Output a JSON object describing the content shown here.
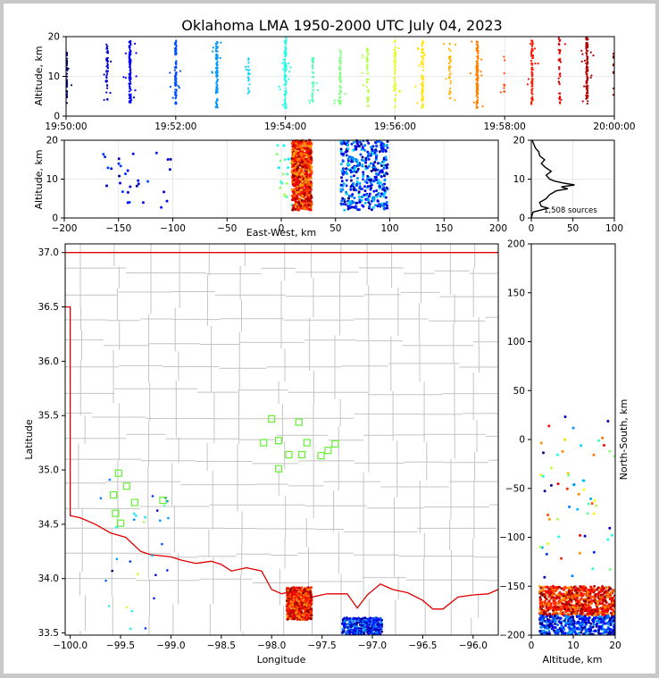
{
  "chart_data": [
    {
      "type": "scatter",
      "panel": "time-altitude",
      "title": "Oklahoma LMA 1950-2000 UTC July 04, 2023",
      "xlabel": "",
      "ylabel": "Altitude, km",
      "xlim": [
        "19:50:00",
        "20:00:00"
      ],
      "ylim": [
        0,
        20
      ],
      "x_ticks": [
        "19:50:00",
        "19:52:00",
        "19:54:00",
        "19:56:00",
        "19:58:00",
        "20:00:00"
      ],
      "y_ticks": [
        0,
        10,
        20
      ],
      "grid": true,
      "color_scale": "time (blue → cyan → green → yellow → orange → red)",
      "point_clusters": [
        {
          "time": "19:50:00",
          "alt_min": 3,
          "alt_max": 16,
          "n": 30
        },
        {
          "time": "19:50:45",
          "alt_min": 4,
          "alt_max": 19,
          "n": 50
        },
        {
          "time": "19:51:10",
          "alt_min": 3,
          "alt_max": 19,
          "n": 110
        },
        {
          "time": "19:52:00",
          "alt_min": 3,
          "alt_max": 19,
          "n": 90
        },
        {
          "time": "19:52:45",
          "alt_min": 2,
          "alt_max": 19,
          "n": 100
        },
        {
          "time": "19:53:20",
          "alt_min": 5,
          "alt_max": 15,
          "n": 20
        },
        {
          "time": "19:54:00",
          "alt_min": 2,
          "alt_max": 20,
          "n": 110
        },
        {
          "time": "19:54:30",
          "alt_min": 3,
          "alt_max": 15,
          "n": 40
        },
        {
          "time": "19:55:00",
          "alt_min": 3,
          "alt_max": 17,
          "n": 60
        },
        {
          "time": "19:55:30",
          "alt_min": 2,
          "alt_max": 17,
          "n": 50
        },
        {
          "time": "19:56:00",
          "alt_min": 2,
          "alt_max": 19,
          "n": 55
        },
        {
          "time": "19:56:30",
          "alt_min": 2,
          "alt_max": 19,
          "n": 80
        },
        {
          "time": "19:57:00",
          "alt_min": 4,
          "alt_max": 19,
          "n": 40
        },
        {
          "time": "19:57:30",
          "alt_min": 2,
          "alt_max": 19,
          "n": 120
        },
        {
          "time": "19:58:00",
          "alt_min": 5,
          "alt_max": 16,
          "n": 10
        },
        {
          "time": "19:58:30",
          "alt_min": 3,
          "alt_max": 19,
          "n": 80
        },
        {
          "time": "19:59:00",
          "alt_min": 3,
          "alt_max": 20,
          "n": 40
        },
        {
          "time": "19:59:30",
          "alt_min": 3,
          "alt_max": 20,
          "n": 120
        },
        {
          "time": "20:00:00",
          "alt_min": 5,
          "alt_max": 17,
          "n": 10
        }
      ]
    },
    {
      "type": "scatter",
      "panel": "east-west-altitude",
      "xlabel": "East-West, km",
      "ylabel": "Altitude, km",
      "xlim": [
        -200,
        200
      ],
      "ylim": [
        0,
        20
      ],
      "x_ticks": [
        -200,
        -150,
        -100,
        -50,
        0,
        50,
        100,
        150,
        200
      ],
      "y_ticks": [
        0,
        10,
        20
      ],
      "grid": true,
      "point_clusters": [
        {
          "x_min": -165,
          "x_max": -100,
          "alt_min": 2,
          "alt_max": 17,
          "n": 30
        },
        {
          "x_min": -5,
          "x_max": 10,
          "alt_min": 2,
          "alt_max": 20,
          "n": 20
        },
        {
          "x_min": 10,
          "x_max": 28,
          "alt_min": 2,
          "alt_max": 20,
          "n": 700
        },
        {
          "x_min": 55,
          "x_max": 98,
          "alt_min": 2,
          "alt_max": 20,
          "n": 400
        }
      ]
    },
    {
      "type": "line",
      "panel": "altitude-histogram",
      "xlim": [
        0,
        100
      ],
      "ylim": [
        0,
        20
      ],
      "x_ticks": [
        0,
        50,
        100
      ],
      "y_ticks": [
        0,
        10,
        20
      ],
      "annotation": "1,508 sources",
      "profile": [
        {
          "alt": 0,
          "count": 0
        },
        {
          "alt": 1.5,
          "count": 2
        },
        {
          "alt": 2.5,
          "count": 20
        },
        {
          "alt": 3,
          "count": 12
        },
        {
          "alt": 4,
          "count": 10
        },
        {
          "alt": 5,
          "count": 18
        },
        {
          "alt": 6,
          "count": 22
        },
        {
          "alt": 7,
          "count": 30
        },
        {
          "alt": 7.5,
          "count": 44
        },
        {
          "alt": 8,
          "count": 36
        },
        {
          "alt": 8.5,
          "count": 52
        },
        {
          "alt": 9,
          "count": 38
        },
        {
          "alt": 9.5,
          "count": 28
        },
        {
          "alt": 10,
          "count": 22
        },
        {
          "alt": 11,
          "count": 18
        },
        {
          "alt": 12,
          "count": 24
        },
        {
          "alt": 13,
          "count": 17
        },
        {
          "alt": 14,
          "count": 12
        },
        {
          "alt": 15,
          "count": 16
        },
        {
          "alt": 16,
          "count": 10
        },
        {
          "alt": 17,
          "count": 9
        },
        {
          "alt": 18,
          "count": 5
        },
        {
          "alt": 19,
          "count": 3
        },
        {
          "alt": 20,
          "count": 1
        }
      ]
    },
    {
      "type": "scatter",
      "panel": "plan-view-map",
      "xlabel": "Longitude",
      "ylabel": "Latitude",
      "xlim": [
        -100.05,
        -95.75
      ],
      "ylim": [
        33.48,
        37.08
      ],
      "x_ticks": [
        -100.0,
        -99.5,
        -99.0,
        -98.5,
        -98.0,
        -97.5,
        -97.0,
        -96.5,
        -96.0
      ],
      "y_ticks": [
        33.5,
        34.0,
        34.5,
        35.0,
        35.5,
        36.0,
        36.5,
        37.0
      ],
      "x_tick_labels": [
        "−100.0",
        "−99.5",
        "−99.0",
        "−98.5",
        "−98.0",
        "−97.5",
        "−97.0",
        "−96.5",
        "−96.0"
      ],
      "y_tick_labels": [
        "33.5",
        "34.0",
        "34.5",
        "35.0",
        "35.5",
        "36.0",
        "36.5",
        "37.0"
      ],
      "grid": false,
      "stations": [
        {
          "lon": -99.52,
          "lat": 34.97
        },
        {
          "lon": -99.44,
          "lat": 34.85
        },
        {
          "lon": -99.57,
          "lat": 34.77
        },
        {
          "lon": -99.55,
          "lat": 34.6
        },
        {
          "lon": -99.5,
          "lat": 34.51
        },
        {
          "lon": -99.36,
          "lat": 34.7
        },
        {
          "lon": -99.08,
          "lat": 34.72
        },
        {
          "lon": -98.0,
          "lat": 35.47
        },
        {
          "lon": -97.73,
          "lat": 35.44
        },
        {
          "lon": -98.08,
          "lat": 35.25
        },
        {
          "lon": -97.93,
          "lat": 35.27
        },
        {
          "lon": -97.65,
          "lat": 35.25
        },
        {
          "lon": -97.83,
          "lat": 35.14
        },
        {
          "lon": -97.7,
          "lat": 35.14
        },
        {
          "lon": -97.51,
          "lat": 35.13
        },
        {
          "lon": -97.44,
          "lat": 35.18
        },
        {
          "lon": -97.37,
          "lat": 35.24
        },
        {
          "lon": -97.93,
          "lat": 35.01
        }
      ],
      "point_clusters": [
        {
          "lon_min": -97.85,
          "lon_max": -97.6,
          "lat_min": 33.62,
          "lat_max": 33.92,
          "n": 700
        },
        {
          "lon_min": -97.3,
          "lon_max": -96.9,
          "lat_min": 33.48,
          "lat_max": 33.64,
          "n": 400
        },
        {
          "lon_min": -99.8,
          "lon_max": -99.0,
          "lat_min": 33.48,
          "lat_max": 34.95,
          "n": 30
        }
      ]
    },
    {
      "type": "scatter",
      "panel": "altitude-north-south",
      "xlabel": "Altitude, km",
      "ylabel": "North-South, km",
      "xlim": [
        0,
        20
      ],
      "ylim": [
        -200,
        200
      ],
      "x_ticks": [
        0,
        10,
        20
      ],
      "y_ticks": [
        -200,
        -150,
        -100,
        -50,
        0,
        50,
        100,
        150,
        200
      ],
      "grid": false,
      "point_clusters": [
        {
          "alt_min": 2,
          "alt_max": 20,
          "y_min": -180,
          "y_max": -150,
          "n": 700
        },
        {
          "alt_min": 2,
          "alt_max": 20,
          "y_min": -200,
          "y_max": -180,
          "n": 400
        },
        {
          "alt_min": 2,
          "alt_max": 20,
          "y_min": -145,
          "y_max": 25,
          "n": 60
        }
      ]
    }
  ]
}
